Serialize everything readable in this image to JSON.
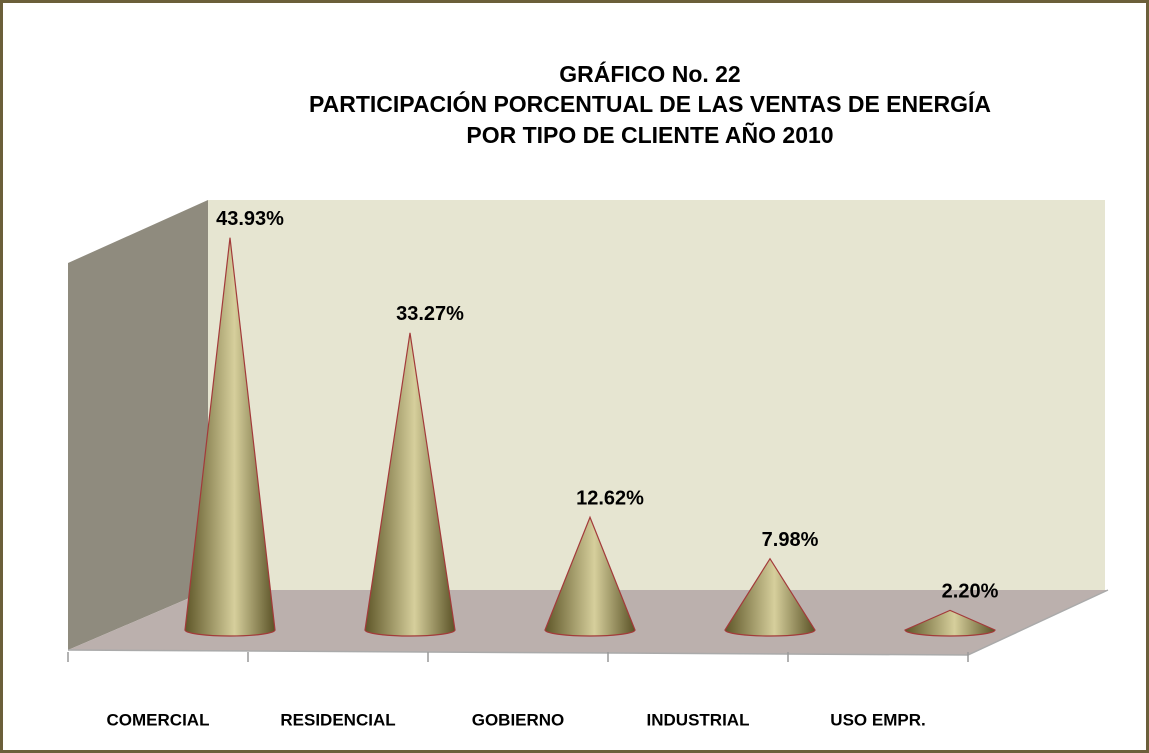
{
  "chart_data": {
    "type": "cone",
    "title": [
      "GRÁFICO No.  22",
      "PARTICIPACIÓN PORCENTUAL DE LAS VENTAS DE ENERGÍA",
      "POR TIPO DE CLIENTE    AÑO 2010"
    ],
    "categories": [
      "COMERCIAL",
      "RESIDENCIAL",
      "GOBIERNO",
      "INDUSTRIAL",
      "USO EMPR."
    ],
    "values": [
      43.93,
      33.27,
      12.62,
      7.98,
      2.2
    ],
    "value_labels": [
      "43.93%",
      "33.27%",
      "12.62%",
      "7.98%",
      "2.20%"
    ],
    "color": "#9b9460"
  }
}
